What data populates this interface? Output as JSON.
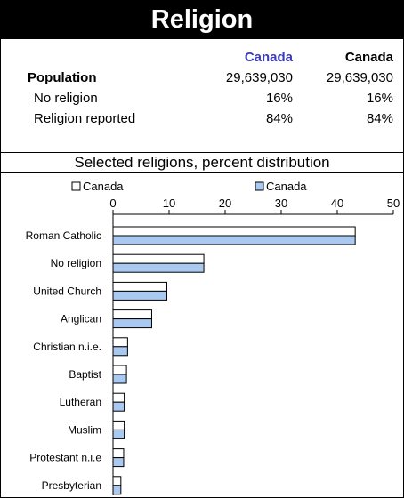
{
  "header": {
    "title": "Religion"
  },
  "table": {
    "col1_header": "Canada",
    "col2_header": "Canada",
    "col1_color": "#3b3bbd",
    "rows": [
      {
        "label": "Population",
        "v1": "29,639,030",
        "v2": "29,639,030",
        "bold": true
      },
      {
        "label": "No religion",
        "v1": "16%",
        "v2": "16%"
      },
      {
        "label": "Religion reported",
        "v1": "84%",
        "v2": "84%"
      }
    ]
  },
  "chart_subtitle": "Selected religions, percent distribution",
  "chart_data": {
    "type": "bar",
    "orientation": "horizontal",
    "categories": [
      "Roman Catholic",
      "No religion",
      "United Church",
      "Anglican",
      "Christian n.i.e.",
      "Baptist",
      "Lutheran",
      "Muslim",
      "Protestant n.i.e",
      "Presbyterian"
    ],
    "series": [
      {
        "name": "Canada",
        "color": "#ffffff",
        "values": [
          43.2,
          16.2,
          9.6,
          6.9,
          2.6,
          2.4,
          2.0,
          2.0,
          1.9,
          1.4
        ]
      },
      {
        "name": "Canada",
        "color": "#a9c9f0",
        "values": [
          43.2,
          16.2,
          9.6,
          6.9,
          2.6,
          2.4,
          2.0,
          2.0,
          1.9,
          1.4
        ]
      }
    ],
    "xlim": [
      0,
      50
    ],
    "xticks": [
      0,
      10,
      20,
      30,
      40,
      50
    ],
    "legend_position": "top"
  }
}
